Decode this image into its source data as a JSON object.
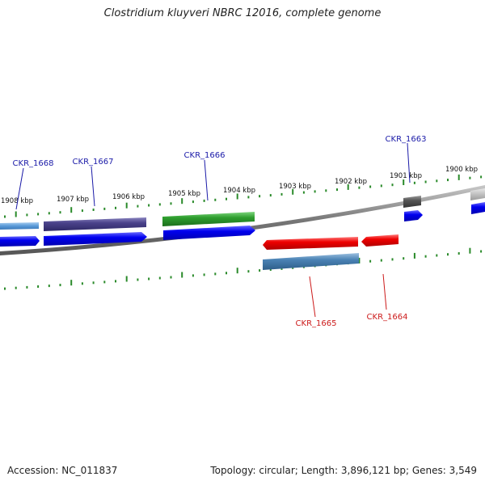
{
  "title": "Clostridium kluyveri NBRC 12016, complete genome",
  "footer": {
    "accession": "Accession: NC_011837",
    "summary": "Topology: circular; Length: 3,896,121 bp; Genes: 3,549"
  },
  "colors": {
    "backbone": "#8a8a8a",
    "tick": "#2a8a2a",
    "cds_blue": "#0000ee",
    "cds_red": "#ee0000",
    "label_forward": "#1a1aa8",
    "label_reverse": "#cc1a1a"
  },
  "kbp_labels": [
    "1908 kbp",
    "1907 kbp",
    "1906 kbp",
    "1905 kbp",
    "1904 kbp",
    "1903 kbp",
    "1902 kbp",
    "1901 kbp",
    "1900 kbp"
  ],
  "gene_labels": {
    "ckr_1668": "CKR_1668",
    "ckr_1667": "CKR_1667",
    "ckr_1666": "CKR_1666",
    "ckr_1663": "CKR_1663",
    "ckr_1665": "CKR_1665",
    "ckr_1664": "CKR_1664"
  }
}
